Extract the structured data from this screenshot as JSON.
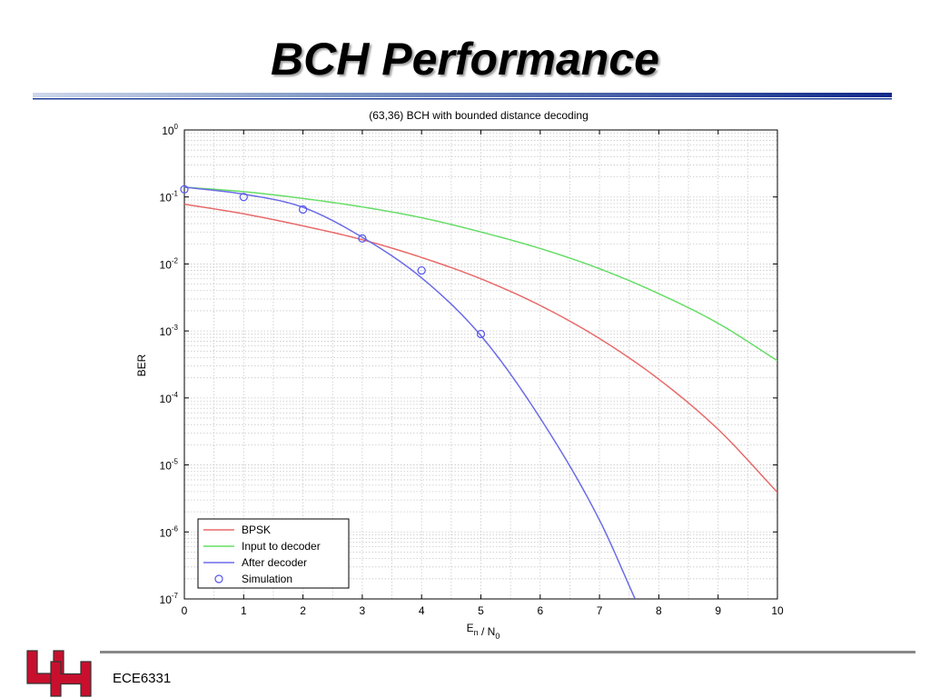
{
  "slide": {
    "title": "BCH Performance",
    "footer": "ECE6331"
  },
  "colors": {
    "bpsk": "#e86a6a",
    "input": "#66dd66",
    "after": "#6b6be8",
    "sim": "#5555ee",
    "logo_red": "#c8102e"
  },
  "chart_data": {
    "type": "line",
    "title": "(63,36) BCH with bounded distance decoding",
    "xlabel": "E_n / N_0",
    "ylabel": "BER",
    "xlim": [
      0,
      10
    ],
    "ylim": [
      1e-07,
      1
    ],
    "yscale": "log",
    "grid": true,
    "x_ticks": [
      "0",
      "1",
      "2",
      "3",
      "4",
      "5",
      "6",
      "7",
      "8",
      "9",
      "10"
    ],
    "y_ticks": [
      {
        "base": "10",
        "exp": "0",
        "value": 1
      },
      {
        "base": "10",
        "exp": "-1",
        "value": 0.1
      },
      {
        "base": "10",
        "exp": "-2",
        "value": 0.01
      },
      {
        "base": "10",
        "exp": "-3",
        "value": 0.001
      },
      {
        "base": "10",
        "exp": "-4",
        "value": 0.0001
      },
      {
        "base": "10",
        "exp": "-5",
        "value": 1e-05
      },
      {
        "base": "10",
        "exp": "-6",
        "value": 1e-06
      },
      {
        "base": "10",
        "exp": "-7",
        "value": 1e-07
      }
    ],
    "legend": {
      "placement": "bottom-left"
    },
    "series": [
      {
        "name": "BPSK",
        "kind": "line",
        "color_key": "bpsk",
        "x": [
          0,
          1,
          2,
          3,
          4,
          5,
          6,
          7,
          8,
          9,
          10
        ],
        "y": [
          0.078,
          0.056,
          0.037,
          0.023,
          0.0125,
          0.006,
          0.0024,
          0.00077,
          0.00019,
          3.4e-05,
          3.9e-06
        ]
      },
      {
        "name": "Input to decoder",
        "kind": "line",
        "color_key": "input",
        "x": [
          0,
          1,
          2,
          3,
          4,
          5,
          6,
          7,
          8,
          9,
          10
        ],
        "y": [
          0.14,
          0.12,
          0.095,
          0.071,
          0.049,
          0.03,
          0.017,
          0.0085,
          0.0036,
          0.0013,
          0.00036
        ]
      },
      {
        "name": "After decoder",
        "kind": "line",
        "color_key": "after",
        "x": [
          0,
          1,
          2,
          3,
          4,
          5,
          6,
          7,
          7.6
        ],
        "y": [
          0.14,
          0.11,
          0.07,
          0.025,
          0.0062,
          0.00085,
          5e-05,
          1.5e-06,
          1e-07
        ]
      },
      {
        "name": "Simulation",
        "kind": "scatter",
        "color_key": "sim",
        "x": [
          0,
          1,
          2,
          3,
          4,
          5
        ],
        "y": [
          0.13,
          0.1,
          0.065,
          0.024,
          0.008,
          0.0009
        ]
      }
    ]
  }
}
